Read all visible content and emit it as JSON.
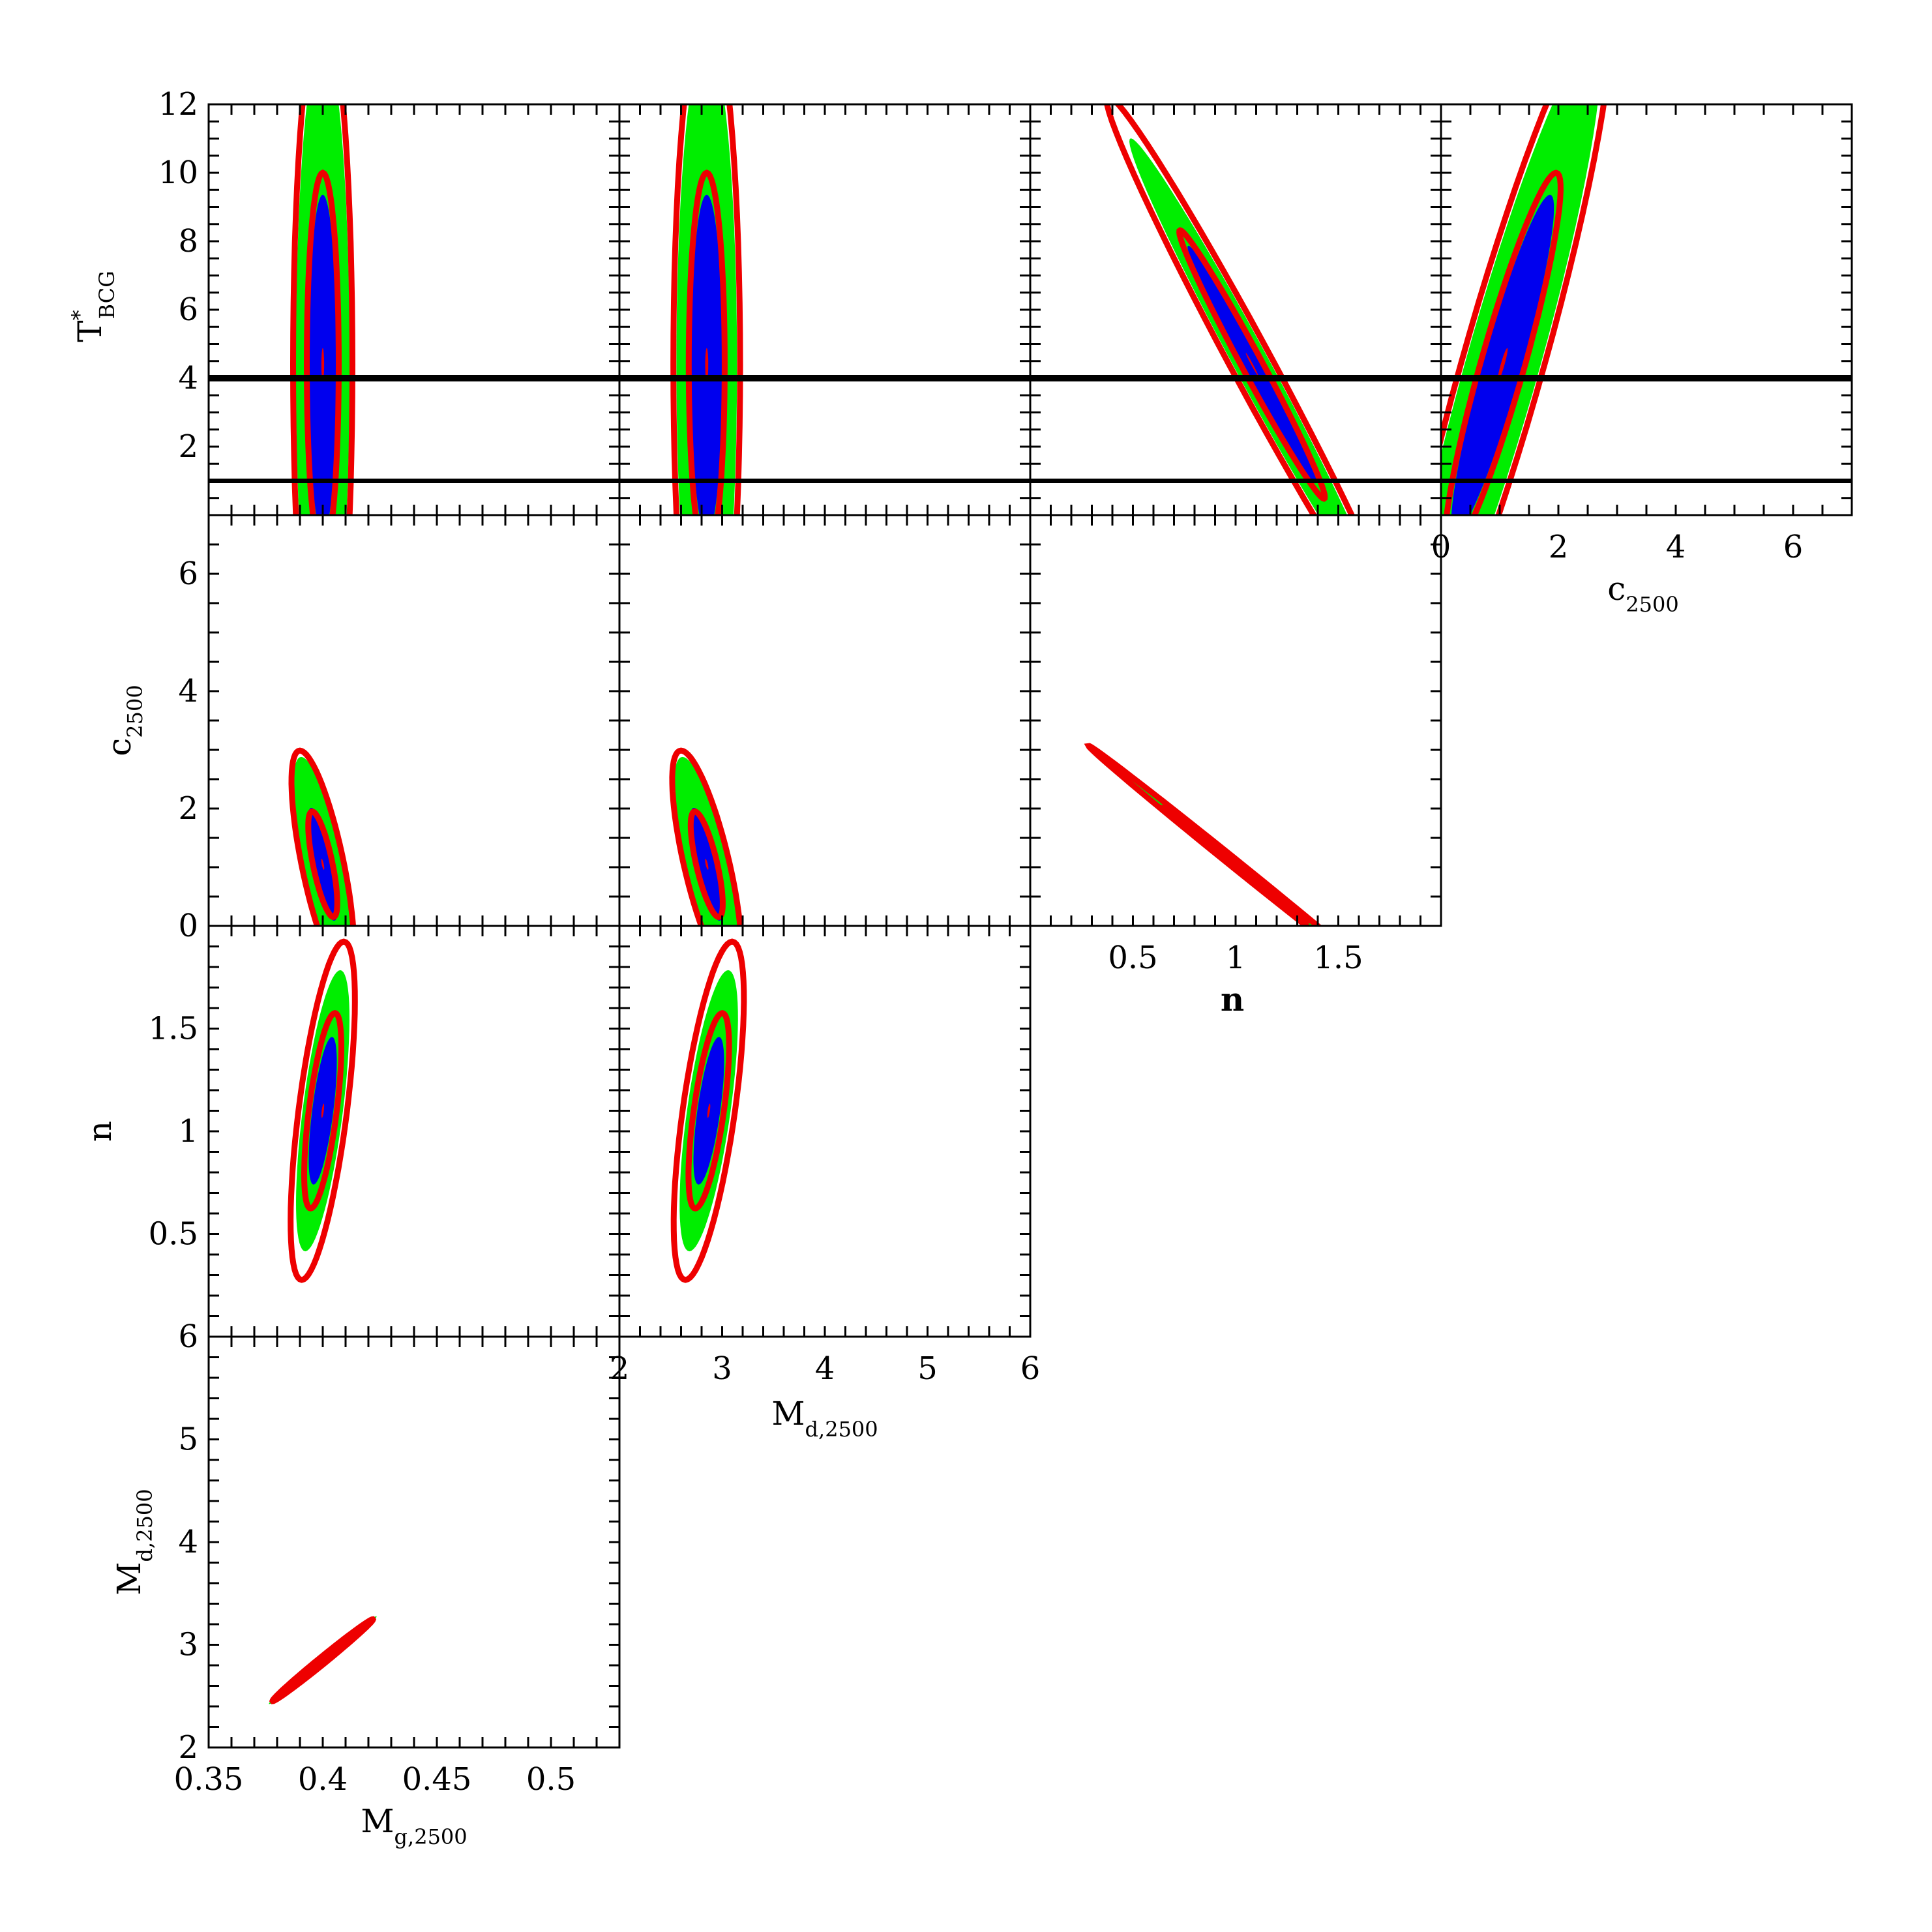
{
  "chart_data": {
    "type": "triangle-contour",
    "colors": {
      "inner_fill": "#0000ee",
      "outer_fill": "#00ee00",
      "contour": "#ee0000",
      "reference_line": "#000000"
    },
    "axes": {
      "Mg": {
        "label": "M",
        "sub": "g,2500",
        "range": [
          0.35,
          0.53
        ],
        "ticks": [
          "0.35",
          "0.4",
          "0.45",
          "0.5"
        ]
      },
      "Md": {
        "label": "M",
        "sub": "d,2500",
        "range": [
          2,
          6
        ],
        "ticks_x": [
          "2",
          "3",
          "4",
          "5",
          "6"
        ],
        "ticks_y": [
          "2",
          "3",
          "4",
          "5",
          "6"
        ]
      },
      "n": {
        "label": "n",
        "range": [
          0,
          2
        ],
        "ticks_x": [
          "0.5",
          "1",
          "1.5"
        ],
        "ticks_y": [
          "0.5",
          "1",
          "1.5"
        ]
      },
      "c": {
        "label": "c",
        "sub": "2500",
        "range": [
          0,
          7
        ],
        "ticks_x": [
          "0",
          "2",
          "4",
          "6"
        ],
        "ticks_y": [
          "0",
          "2",
          "4",
          "6"
        ]
      },
      "T": {
        "label": "T",
        "sup": "*",
        "sub": "BCG",
        "range": [
          0,
          12
        ],
        "ticks_y": [
          "2",
          "4",
          "6",
          "8",
          "10",
          "12"
        ]
      }
    },
    "reference_lines_T": [
      1,
      4
    ],
    "panels": [
      {
        "x": "Mg",
        "y": "T",
        "center": [
          0.4,
          4.4
        ],
        "axis1": [
          0.0,
          8.0
        ],
        "axis2": [
          0.01,
          0
        ],
        "scale_inner": 0.7,
        "scale_outer": 1.3
      },
      {
        "x": "Md",
        "y": "T",
        "center": [
          2.85,
          4.4
        ],
        "axis1": [
          0.0,
          8.0
        ],
        "axis2": [
          0.25,
          0
        ],
        "scale_inner": 0.7,
        "scale_outer": 1.3
      },
      {
        "x": "n",
        "y": "T",
        "center": [
          1.08,
          4.4
        ],
        "axis1": [
          -0.5,
          5.6
        ],
        "axis2": [
          0.08,
          0
        ],
        "scale_inner": 0.7,
        "scale_outer": 1.4
      },
      {
        "x": "c",
        "y": "T",
        "center": [
          1.05,
          4.4
        ],
        "axis1": [
          1.3,
          8.0
        ],
        "axis2": [
          0.55,
          0
        ],
        "scale_inner": 0.7,
        "scale_outer": 1.3
      },
      {
        "x": "Mg",
        "y": "c",
        "center": [
          0.4,
          1.05
        ],
        "axis1": [
          -0.008,
          1.55
        ],
        "axis2": [
          0.0075,
          0
        ],
        "scale_inner": 0.58,
        "scale_outer": 1.25
      },
      {
        "x": "Md",
        "y": "c",
        "center": [
          2.85,
          1.05
        ],
        "axis1": [
          -0.2,
          1.55
        ],
        "axis2": [
          0.18,
          0
        ],
        "scale_inner": 0.58,
        "scale_outer": 1.25
      },
      {
        "x": "n",
        "y": "c",
        "center": [
          1.0,
          1.05
        ],
        "axis1": [
          0.55,
          -1.55
        ],
        "axis2": [
          0,
          0.07
        ],
        "scale_inner": 0.62,
        "scale_outer": 1.3
      },
      {
        "x": "Mg",
        "y": "n",
        "center": [
          0.4,
          1.1
        ],
        "axis1": [
          0.0065,
          0.58
        ],
        "axis2": [
          0.0075,
          0
        ],
        "scale_inner": 0.82,
        "scale_outer": 1.42
      },
      {
        "x": "Md",
        "y": "n",
        "center": [
          2.87,
          1.1
        ],
        "axis1": [
          0.16,
          0.58
        ],
        "axis2": [
          0.18,
          0
        ],
        "scale_inner": 0.82,
        "scale_outer": 1.42
      },
      {
        "x": "Mg",
        "y": "Md",
        "center": [
          0.4,
          2.85
        ],
        "axis1": [
          0.02,
          0.36
        ],
        "axis2": [
          0,
          0.04
        ],
        "scale_inner": 0.55,
        "scale_outer": 1.1
      }
    ]
  }
}
